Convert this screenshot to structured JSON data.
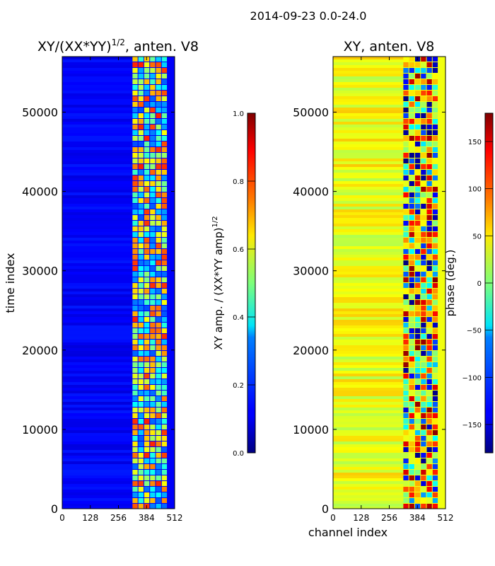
{
  "suptitle": "2014-09-23 0.0-24.0",
  "chart_data": [
    {
      "type": "heatmap",
      "title_main": "XY/(XX*YY)",
      "title_sup": "1/2",
      "title_rest": ", anten. V8",
      "xlabel": "",
      "ylabel": "time index",
      "xlim": [
        0,
        512
      ],
      "ylim": [
        0,
        57000
      ],
      "xticks": [
        0,
        128,
        256,
        384,
        512
      ],
      "yticks": [
        0,
        10000,
        20000,
        30000,
        40000,
        50000
      ],
      "colorbar": {
        "label_main": "XY amp. / (XX*YY amp)",
        "label_sup": "1/2",
        "range": [
          0.0,
          1.0
        ],
        "ticks": [
          "0.0",
          "0.2",
          "0.4",
          "0.6",
          "0.8",
          "1.0"
        ],
        "tick_values": [
          0,
          0.2,
          0.4,
          0.6,
          0.8,
          1.0
        ]
      },
      "active_channels": [
        320,
        480
      ],
      "background_value": 0.12,
      "active_value_range": [
        0.2,
        0.85
      ]
    },
    {
      "type": "heatmap",
      "title": "XY, anten. V8",
      "xlabel": "channel index",
      "ylabel": "",
      "xlim": [
        0,
        512
      ],
      "ylim": [
        0,
        57000
      ],
      "xticks": [
        0,
        128,
        256,
        384,
        512
      ],
      "yticks": [
        0,
        10000,
        20000,
        30000,
        40000,
        50000
      ],
      "colorbar": {
        "label": "phase (deg.)",
        "range": [
          -180,
          180
        ],
        "ticks": [
          "−150",
          "−100",
          "−50",
          "0",
          "50",
          "100",
          "150"
        ],
        "tick_values": [
          -150,
          -100,
          -50,
          0,
          50,
          100,
          150
        ]
      },
      "active_channels": [
        320,
        480
      ],
      "background_value": 40,
      "active_value_range": [
        -180,
        180
      ]
    }
  ]
}
